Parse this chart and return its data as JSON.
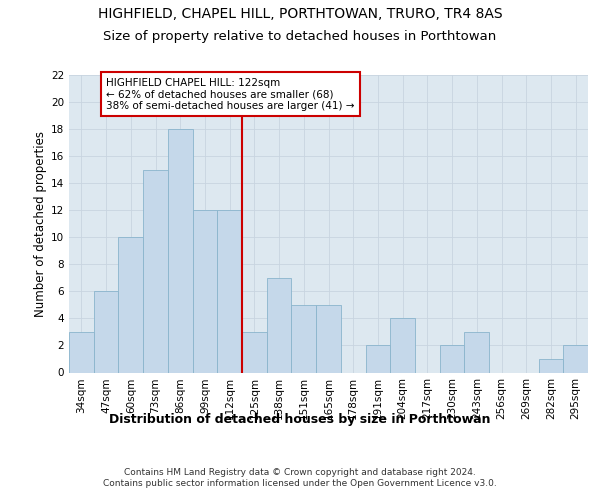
{
  "title1": "HIGHFIELD, CHAPEL HILL, PORTHTOWAN, TRURO, TR4 8AS",
  "title2": "Size of property relative to detached houses in Porthtowan",
  "xlabel": "Distribution of detached houses by size in Porthtowan",
  "ylabel": "Number of detached properties",
  "categories": [
    "34sqm",
    "47sqm",
    "60sqm",
    "73sqm",
    "86sqm",
    "99sqm",
    "112sqm",
    "125sqm",
    "138sqm",
    "151sqm",
    "165sqm",
    "178sqm",
    "191sqm",
    "204sqm",
    "217sqm",
    "230sqm",
    "243sqm",
    "256sqm",
    "269sqm",
    "282sqm",
    "295sqm"
  ],
  "values": [
    3,
    6,
    10,
    15,
    18,
    12,
    12,
    3,
    7,
    5,
    5,
    0,
    2,
    4,
    0,
    2,
    3,
    0,
    0,
    1,
    2
  ],
  "bar_color": "#c5d8ea",
  "bar_edgecolor": "#8ab4cc",
  "property_line_x": 6.5,
  "annotation_text": "HIGHFIELD CHAPEL HILL: 122sqm\n← 62% of detached houses are smaller (68)\n38% of semi-detached houses are larger (41) →",
  "annotation_box_color": "#ffffff",
  "annotation_box_edgecolor": "#cc0000",
  "vline_color": "#cc0000",
  "ylim": [
    0,
    22
  ],
  "yticks": [
    0,
    2,
    4,
    6,
    8,
    10,
    12,
    14,
    16,
    18,
    20,
    22
  ],
  "grid_color": "#c8d4e0",
  "background_color": "#dde8f0",
  "footer_text": "Contains HM Land Registry data © Crown copyright and database right 2024.\nContains public sector information licensed under the Open Government Licence v3.0.",
  "title1_fontsize": 10,
  "title2_fontsize": 9.5,
  "xlabel_fontsize": 9,
  "ylabel_fontsize": 8.5,
  "tick_fontsize": 7.5,
  "footer_fontsize": 6.5,
  "annot_fontsize": 7.5
}
